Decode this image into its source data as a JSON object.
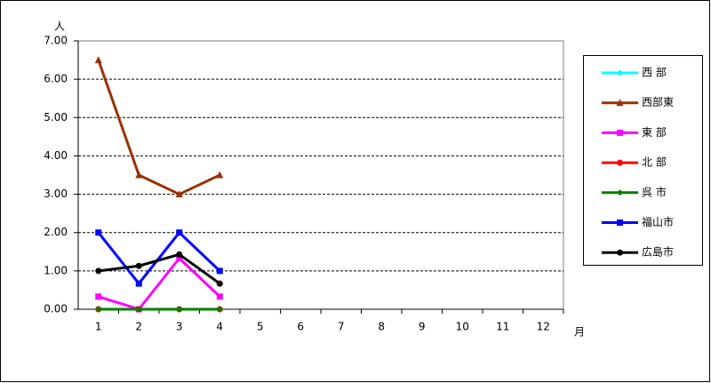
{
  "chart_data": {
    "type": "line",
    "y_label": "人",
    "x_label": "月",
    "categories": [
      "1",
      "2",
      "3",
      "4",
      "5",
      "6",
      "7",
      "8",
      "9",
      "10",
      "11",
      "12"
    ],
    "ylim": [
      0,
      7
    ],
    "yticks": [
      {
        "value": 0,
        "label": "0.00"
      },
      {
        "value": 1,
        "label": "1.00"
      },
      {
        "value": 2,
        "label": "2.00"
      },
      {
        "value": 3,
        "label": "3.00"
      },
      {
        "value": 4,
        "label": "4.00"
      },
      {
        "value": 5,
        "label": "5.00"
      },
      {
        "value": 6,
        "label": "6.00"
      },
      {
        "value": 7,
        "label": "7.00"
      }
    ],
    "grid": true,
    "legend": "right",
    "series": [
      {
        "name": "西 部",
        "color": "#00ffff",
        "marker": "diamond",
        "values": [
          0,
          0,
          0,
          0,
          null,
          null,
          null,
          null,
          null,
          null,
          null,
          null
        ]
      },
      {
        "name": "西部東",
        "color": "#993300",
        "marker": "triangle",
        "values": [
          6.5,
          3.5,
          3.0,
          3.5,
          null,
          null,
          null,
          null,
          null,
          null,
          null,
          null
        ]
      },
      {
        "name": "東 部",
        "color": "#ff00ff",
        "marker": "square",
        "values": [
          0.33,
          0,
          1.33,
          0.33,
          null,
          null,
          null,
          null,
          null,
          null,
          null,
          null
        ]
      },
      {
        "name": "北 部",
        "color": "#ff0000",
        "marker": "circle",
        "values": [
          0,
          0,
          0,
          0,
          null,
          null,
          null,
          null,
          null,
          null,
          null,
          null
        ]
      },
      {
        "name": "呉 市",
        "color": "#008000",
        "marker": "diamond",
        "values": [
          0,
          0,
          0,
          0,
          null,
          null,
          null,
          null,
          null,
          null,
          null,
          null
        ]
      },
      {
        "name": "福山市",
        "color": "#0000ff",
        "marker": "square",
        "values": [
          2,
          0.67,
          2,
          1,
          null,
          null,
          null,
          null,
          null,
          null,
          null,
          null
        ]
      },
      {
        "name": "広島市",
        "color": "#000000",
        "marker": "circle",
        "values": [
          1,
          1.13,
          1.43,
          0.67,
          null,
          null,
          null,
          null,
          null,
          null,
          null,
          null
        ]
      }
    ]
  }
}
